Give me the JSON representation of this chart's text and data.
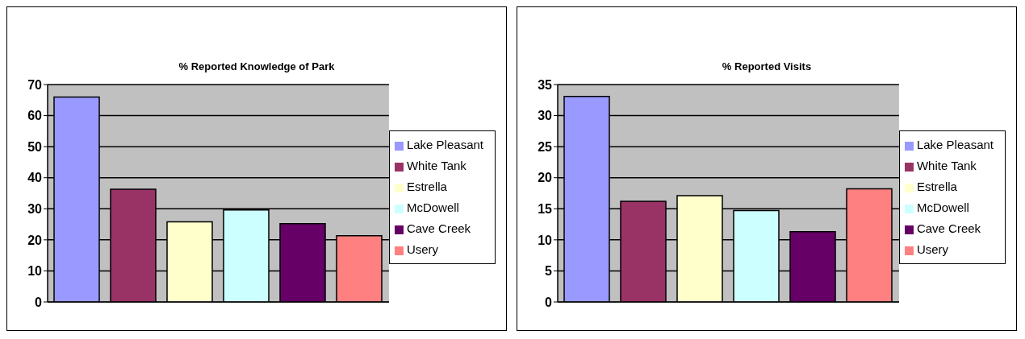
{
  "chart_data": [
    {
      "type": "bar",
      "title": "% Reported Knowledge of Park",
      "categories": [
        null
      ],
      "series": [
        {
          "name": "Lake Pleasant",
          "color": "#9999ff",
          "values": [
            66
          ]
        },
        {
          "name": "White Tank",
          "color": "#993366",
          "values": [
            36.3
          ]
        },
        {
          "name": "Estrella",
          "color": "#ffffcc",
          "values": [
            25.8
          ]
        },
        {
          "name": "McDowell",
          "color": "#ccffff",
          "values": [
            29.6
          ]
        },
        {
          "name": "Cave Creek",
          "color": "#660066",
          "values": [
            25.2
          ]
        },
        {
          "name": "Usery",
          "color": "#ff8080",
          "values": [
            21.3
          ]
        }
      ],
      "ylim": [
        0,
        70
      ],
      "yticks": [
        0,
        10,
        20,
        30,
        40,
        50,
        60,
        70
      ],
      "grid": "y",
      "legend": "right"
    },
    {
      "type": "bar",
      "title": "% Reported Visits",
      "categories": [
        null
      ],
      "series": [
        {
          "name": "Lake Pleasant",
          "color": "#9999ff",
          "values": [
            33.1
          ]
        },
        {
          "name": "White Tank",
          "color": "#993366",
          "values": [
            16.2
          ]
        },
        {
          "name": "Estrella",
          "color": "#ffffcc",
          "values": [
            17.1
          ]
        },
        {
          "name": "McDowell",
          "color": "#ccffff",
          "values": [
            14.7
          ]
        },
        {
          "name": "Cave Creek",
          "color": "#660066",
          "values": [
            11.3
          ]
        },
        {
          "name": "Usery",
          "color": "#ff8080",
          "values": [
            18.2
          ]
        }
      ],
      "ylim": [
        0,
        35
      ],
      "yticks": [
        0,
        5,
        10,
        15,
        20,
        25,
        30,
        35
      ],
      "grid": "y",
      "legend": "right"
    }
  ]
}
